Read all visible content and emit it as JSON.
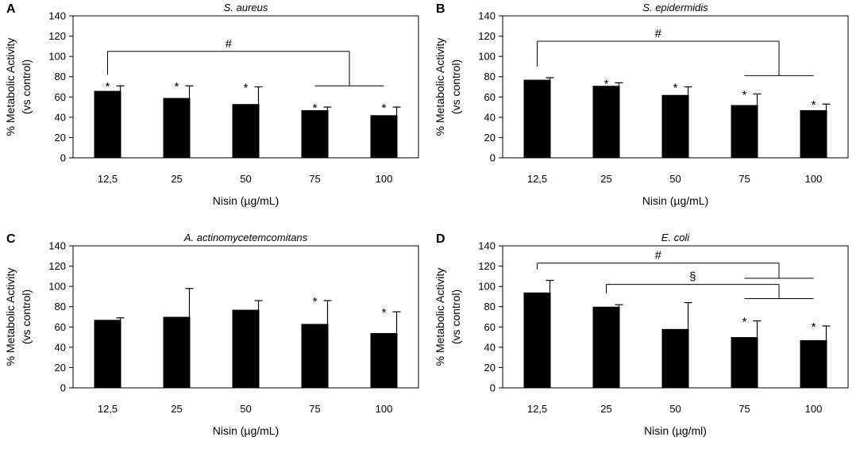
{
  "panels": [
    {
      "id": "A",
      "label": "A",
      "title": "S. aureus",
      "xlabel": "Nisin (µg/mL)",
      "ylabel_line1": "% Metabolic Activity",
      "ylabel_line2": "(vs control)",
      "categories": [
        "12,5",
        "25",
        "50",
        "75",
        "100"
      ],
      "values": [
        66,
        59,
        53,
        47,
        42
      ],
      "errors": [
        5,
        12,
        17,
        3,
        8
      ],
      "stars": [
        true,
        true,
        true,
        true,
        true
      ],
      "ylim": [
        0,
        140
      ],
      "yticks": [
        "0",
        "20",
        "40",
        "60",
        "80",
        "100",
        "120",
        "140"
      ],
      "brackets": [
        {
          "symbol": "#",
          "from": 0,
          "to": [
            3,
            4
          ],
          "top_value": 105,
          "group_value": 71
        }
      ]
    },
    {
      "id": "B",
      "label": "B",
      "title": "S. epidermidis",
      "xlabel": "Nisin (µg/mL)",
      "ylabel_line1": "% Metabolic Activity",
      "ylabel_line2": "(vs control)",
      "categories": [
        "12,5",
        "25",
        "50",
        "75",
        "100"
      ],
      "values": [
        77,
        71,
        62,
        52,
        47
      ],
      "errors": [
        2,
        3,
        8,
        11,
        6
      ],
      "stars": [
        false,
        true,
        true,
        true,
        true
      ],
      "ylim": [
        0,
        140
      ],
      "yticks": [
        "0",
        "20",
        "40",
        "60",
        "80",
        "100",
        "120",
        "140"
      ],
      "brackets": [
        {
          "symbol": "#",
          "from": 0,
          "to": [
            3,
            4
          ],
          "top_value": 115,
          "group_value": 81
        }
      ]
    },
    {
      "id": "C",
      "label": "C",
      "title": "A. actinomycetemcomitans",
      "xlabel": "Nisin (µg/mL)",
      "ylabel_line1": "% Metabolic Activity",
      "ylabel_line2": "(vs control)",
      "categories": [
        "12,5",
        "25",
        "50",
        "75",
        "100"
      ],
      "values": [
        67,
        70,
        77,
        63,
        54
      ],
      "errors": [
        2,
        28,
        9,
        23,
        21
      ],
      "stars": [
        false,
        false,
        false,
        true,
        true
      ],
      "ylim": [
        0,
        140
      ],
      "yticks": [
        "0",
        "20",
        "40",
        "60",
        "80",
        "100",
        "120",
        "140"
      ],
      "brackets": []
    },
    {
      "id": "D",
      "label": "D",
      "title": "E. coli",
      "xlabel": "Nisin (µg/ml)",
      "ylabel_line1": "% Metabolic Activity",
      "ylabel_line2": "(vs control)",
      "categories": [
        "12,5",
        "25",
        "50",
        "75",
        "100"
      ],
      "values": [
        94,
        80,
        58,
        50,
        47
      ],
      "errors": [
        12,
        2,
        26,
        16,
        14
      ],
      "stars": [
        false,
        false,
        false,
        true,
        true
      ],
      "ylim": [
        0,
        140
      ],
      "yticks": [
        "0",
        "20",
        "40",
        "60",
        "80",
        "100",
        "120",
        "140"
      ],
      "brackets": [
        {
          "symbol": "#",
          "from": 0,
          "to": [
            3,
            4
          ],
          "top_value": 123,
          "group_value": 108
        },
        {
          "symbol": "§",
          "from": 1,
          "to": [
            3,
            4
          ],
          "top_value": 102,
          "group_value": 88
        }
      ]
    }
  ],
  "chart_data": [
    {
      "type": "bar",
      "title": "S. aureus",
      "categories": [
        "12,5",
        "25",
        "50",
        "75",
        "100"
      ],
      "values": [
        66,
        59,
        53,
        47,
        42
      ],
      "errors": [
        5,
        12,
        17,
        3,
        8
      ],
      "xlabel": "Nisin (µg/mL)",
      "ylabel": "% Metabolic Activity (vs control)",
      "ylim": [
        0,
        140
      ]
    },
    {
      "type": "bar",
      "title": "S. epidermidis",
      "categories": [
        "12,5",
        "25",
        "50",
        "75",
        "100"
      ],
      "values": [
        77,
        71,
        62,
        52,
        47
      ],
      "errors": [
        2,
        3,
        8,
        11,
        6
      ],
      "xlabel": "Nisin (µg/mL)",
      "ylabel": "% Metabolic Activity (vs control)",
      "ylim": [
        0,
        140
      ]
    },
    {
      "type": "bar",
      "title": "A. actinomycetemcomitans",
      "categories": [
        "12,5",
        "25",
        "50",
        "75",
        "100"
      ],
      "values": [
        67,
        70,
        77,
        63,
        54
      ],
      "errors": [
        2,
        28,
        9,
        23,
        21
      ],
      "xlabel": "Nisin (µg/mL)",
      "ylabel": "% Metabolic Activity (vs control)",
      "ylim": [
        0,
        140
      ]
    },
    {
      "type": "bar",
      "title": "E. coli",
      "categories": [
        "12,5",
        "25",
        "50",
        "75",
        "100"
      ],
      "values": [
        94,
        80,
        58,
        50,
        47
      ],
      "errors": [
        12,
        2,
        26,
        16,
        14
      ],
      "xlabel": "Nisin (µg/ml)",
      "ylabel": "% Metabolic Activity (vs control)",
      "ylim": [
        0,
        140
      ]
    }
  ]
}
